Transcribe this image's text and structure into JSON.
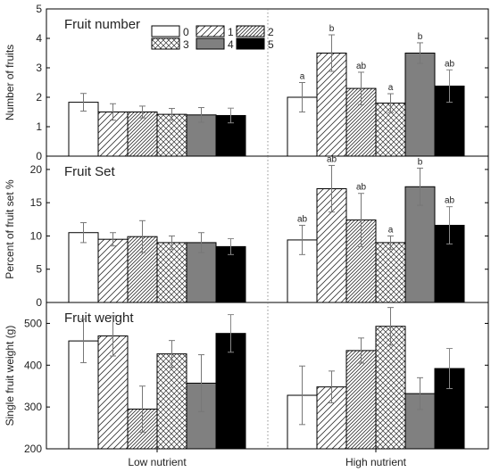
{
  "chart_data": {
    "type": "bar",
    "groups": [
      "Low nutrient",
      "High nutrient"
    ],
    "series_labels": [
      "0",
      "1",
      "2",
      "3",
      "4",
      "5"
    ],
    "legend_position": "top-center of first panel",
    "panels": [
      {
        "id": "fruit-number",
        "title": "Fruit number",
        "ylabel": "Number of fruits",
        "ylim": [
          0,
          5
        ],
        "yticks": [
          0,
          1,
          2,
          3,
          4,
          5
        ],
        "values": [
          [
            1.83,
            1.5,
            1.5,
            1.42,
            1.4,
            1.38
          ],
          [
            2.0,
            3.5,
            2.3,
            1.8,
            3.5,
            2.38
          ]
        ],
        "errors": [
          [
            0.3,
            0.28,
            0.2,
            0.2,
            0.25,
            0.25
          ],
          [
            0.5,
            0.62,
            0.55,
            0.32,
            0.35,
            0.55
          ]
        ],
        "letters": [
          [
            "",
            "",
            "",
            "",
            "",
            ""
          ],
          [
            "a",
            "b",
            "ab",
            "a",
            "b",
            "ab"
          ]
        ]
      },
      {
        "id": "fruit-set",
        "title": "Fruit Set",
        "ylabel": "Percent of fruit set %",
        "ylim": [
          0,
          22
        ],
        "yticks": [
          0,
          5,
          10,
          15,
          20
        ],
        "values": [
          [
            10.5,
            9.5,
            9.9,
            9.0,
            9.0,
            8.4
          ],
          [
            9.4,
            17.1,
            12.4,
            9.0,
            17.4,
            11.6
          ]
        ],
        "errors": [
          [
            1.5,
            1.0,
            2.4,
            1.0,
            1.5,
            1.2
          ],
          [
            2.2,
            3.5,
            4.0,
            1.0,
            2.8,
            2.8
          ]
        ],
        "letters": [
          [
            "",
            "",
            "",
            "",
            "",
            ""
          ],
          [
            "ab",
            "ab",
            "ab",
            "a",
            "b",
            "ab"
          ]
        ]
      },
      {
        "id": "fruit-weight",
        "title": "Fruit weight",
        "ylabel": "Single fruit weight (g)",
        "ylim": [
          200,
          550
        ],
        "yticks": [
          200,
          300,
          400,
          500
        ],
        "values": [
          [
            458,
            470,
            295,
            427,
            357,
            476
          ],
          [
            328,
            348,
            435,
            493,
            332,
            392
          ]
        ],
        "errors": [
          [
            52,
            48,
            55,
            32,
            68,
            45
          ],
          [
            70,
            38,
            30,
            45,
            38,
            48
          ]
        ],
        "letters": [
          [
            "",
            "",
            "",
            "",
            "",
            ""
          ],
          [
            "",
            "",
            "",
            "",
            "",
            ""
          ]
        ]
      }
    ]
  }
}
